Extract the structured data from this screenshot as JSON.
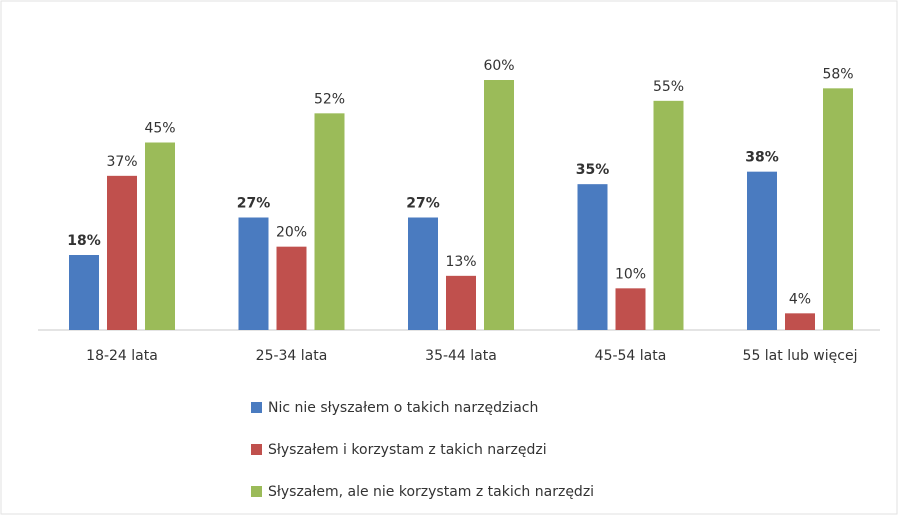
{
  "chart_data": {
    "type": "bar",
    "categories": [
      "18-24 lata",
      "25-34 lata",
      "35-44 lata",
      "45-54 lata",
      "55 lat lub więcej"
    ],
    "series": [
      {
        "name": "Nic nie słyszałem o takich narzędziach",
        "color": "#4a7bc0",
        "values": [
          18,
          27,
          27,
          35,
          38
        ],
        "value_labels": [
          "18%",
          "27%",
          "27%",
          "35%",
          "38%"
        ]
      },
      {
        "name": "Słyszałem i korzystam z takich narzędzi",
        "color": "#c0504d",
        "values": [
          37,
          20,
          13,
          10,
          4
        ],
        "value_labels": [
          "37%",
          "20%",
          "13%",
          "10%",
          "4%"
        ]
      },
      {
        "name": "Słyszałem, ale nie korzystam z takich narzędzi",
        "color": "#9bbb59",
        "values": [
          45,
          52,
          60,
          55,
          58
        ],
        "value_labels": [
          "45%",
          "52%",
          "60%",
          "55%",
          "58%"
        ]
      }
    ]
  }
}
